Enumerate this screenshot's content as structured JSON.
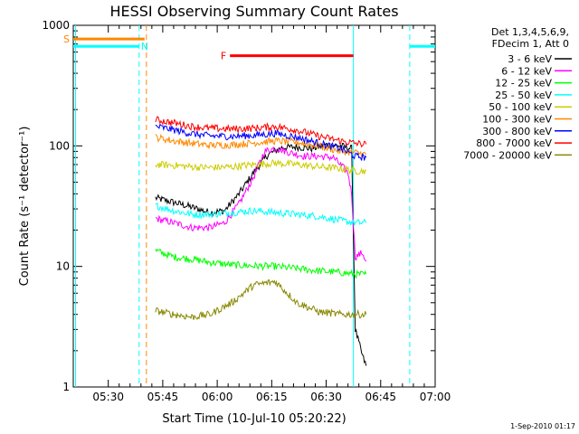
{
  "chart_data": {
    "type": "line",
    "title": "HESSI Observing Summary Count Rates",
    "xlabel": "Start Time (10-Jul-10 05:20:22)",
    "ylabel": "Count Rate (s⁻¹ detector⁻¹)",
    "y_scale": "log",
    "ylim": [
      1,
      1000
    ],
    "xlim": [
      "05:20:22",
      "07:00:00"
    ],
    "x_ticks": [
      "05:30",
      "05:45",
      "06:00",
      "06:15",
      "06:30",
      "06:45",
      "07:00"
    ],
    "y_ticks": [
      "1",
      "10",
      "100",
      "1000"
    ],
    "grid": false,
    "legend_position": "right",
    "legend_header": [
      "Det 1,3,4,5,6,9,",
      "FDecim 1, Att 0"
    ],
    "footer_stamp": "1-Sep-2010 01:17",
    "series": [
      {
        "name": "3 - 6 keV",
        "color": "#000000",
        "x": [
          "05:43",
          "05:48",
          "05:53",
          "05:58",
          "06:02",
          "06:06",
          "06:10",
          "06:14",
          "06:18",
          "06:22",
          "06:26",
          "06:30",
          "06:34",
          "06:37",
          "06:38",
          "06:40",
          "06:41"
        ],
        "y": [
          37,
          34,
          31,
          28,
          29,
          40,
          60,
          85,
          97,
          98,
          95,
          102,
          100,
          95,
          3,
          1.8,
          1.5
        ]
      },
      {
        "name": "6 - 12 keV",
        "color": "#ff00ff",
        "x": [
          "05:43",
          "05:48",
          "05:53",
          "05:58",
          "06:02",
          "06:06",
          "06:10",
          "06:13",
          "06:16",
          "06:20",
          "06:24",
          "06:28",
          "06:32",
          "06:36",
          "06:37",
          "06:38",
          "06:40",
          "06:41"
        ],
        "y": [
          25,
          23,
          21,
          21,
          23,
          33,
          55,
          90,
          96,
          88,
          82,
          82,
          80,
          60,
          40,
          12,
          13,
          11
        ]
      },
      {
        "name": "12 - 25 keV",
        "color": "#00ff00",
        "x": [
          "05:43",
          "05:48",
          "05:53",
          "05:58",
          "06:04",
          "06:10",
          "06:16",
          "06:22",
          "06:28",
          "06:34",
          "06:38",
          "06:41"
        ],
        "y": [
          13.5,
          12,
          11.5,
          10.8,
          10.3,
          10.1,
          10,
          9.6,
          9.2,
          8.9,
          8.6,
          8.6
        ]
      },
      {
        "name": "25 - 50 keV",
        "color": "#00ffff",
        "x": [
          "05:43",
          "05:48",
          "05:53",
          "05:58",
          "06:04",
          "06:10",
          "06:16",
          "06:22",
          "06:28",
          "06:34",
          "06:38",
          "06:41"
        ],
        "y": [
          32,
          29,
          27,
          27,
          28,
          29,
          28,
          27,
          26,
          24,
          23,
          23
        ]
      },
      {
        "name": "50 - 100 keV",
        "color": "#cccc00",
        "x": [
          "05:43",
          "05:48",
          "05:53",
          "05:58",
          "06:04",
          "06:10",
          "06:16",
          "06:22",
          "06:28",
          "06:34",
          "06:38",
          "06:41"
        ],
        "y": [
          70,
          69,
          67,
          66,
          67,
          70,
          72,
          70,
          67,
          65,
          62,
          62
        ]
      },
      {
        "name": "100 - 300 keV",
        "color": "#ff8800",
        "x": [
          "05:43",
          "05:48",
          "05:53",
          "05:58",
          "06:04",
          "06:10",
          "06:16",
          "06:22",
          "06:28",
          "06:34",
          "06:38",
          "06:41"
        ],
        "y": [
          118,
          110,
          105,
          101,
          102,
          106,
          110,
          107,
          100,
          90,
          88,
          85
        ]
      },
      {
        "name": "300 - 800 keV",
        "color": "#0000ff",
        "x": [
          "05:43",
          "05:48",
          "05:53",
          "05:58",
          "06:04",
          "06:10",
          "06:16",
          "06:22",
          "06:28",
          "06:34",
          "06:38",
          "06:41"
        ],
        "y": [
          145,
          136,
          126,
          121,
          120,
          122,
          127,
          118,
          105,
          95,
          82,
          80
        ]
      },
      {
        "name": "800 - 7000 keV",
        "color": "#ff0000",
        "x": [
          "05:43",
          "05:48",
          "05:53",
          "05:58",
          "06:04",
          "06:10",
          "06:16",
          "06:22",
          "06:28",
          "06:34",
          "06:38",
          "06:41"
        ],
        "y": [
          165,
          155,
          145,
          140,
          138,
          140,
          145,
          135,
          120,
          110,
          105,
          103
        ]
      },
      {
        "name": "7000 - 20000 keV",
        "color": "#888800",
        "x": [
          "05:43",
          "05:48",
          "05:53",
          "05:58",
          "06:04",
          "06:10",
          "06:16",
          "06:22",
          "06:28",
          "06:34",
          "06:38",
          "06:41"
        ],
        "y": [
          4.3,
          4,
          3.8,
          4,
          5,
          7,
          7.5,
          5,
          4.2,
          4,
          4,
          4
        ]
      }
    ],
    "flags": [
      {
        "label": "S",
        "color": "#ff8800",
        "level": 770,
        "x0": "05:20:22",
        "x1": "05:40:00"
      },
      {
        "label": "N",
        "color": "#00ffff",
        "level": 670,
        "x0": "05:20:22",
        "x1": "05:38:30"
      },
      {
        "label": "",
        "color": "#00ffff",
        "level": 670,
        "x0": "06:53:00",
        "x1": "07:00:00"
      },
      {
        "label": "F",
        "color": "#ff0000",
        "level": 560,
        "x0": "06:03:30",
        "x1": "06:37:30"
      }
    ],
    "markers": [
      {
        "color": "#00ffff",
        "style": "dashed",
        "x": "05:38:30"
      },
      {
        "color": "#ff8800",
        "style": "dashed",
        "x": "05:40:30"
      },
      {
        "color": "#00ffff",
        "style": "solid",
        "x": "05:21:00"
      },
      {
        "color": "#00ffff",
        "style": "solid",
        "x": "06:37:30"
      },
      {
        "color": "#00ffff",
        "style": "dashed",
        "x": "06:53:00"
      }
    ]
  }
}
